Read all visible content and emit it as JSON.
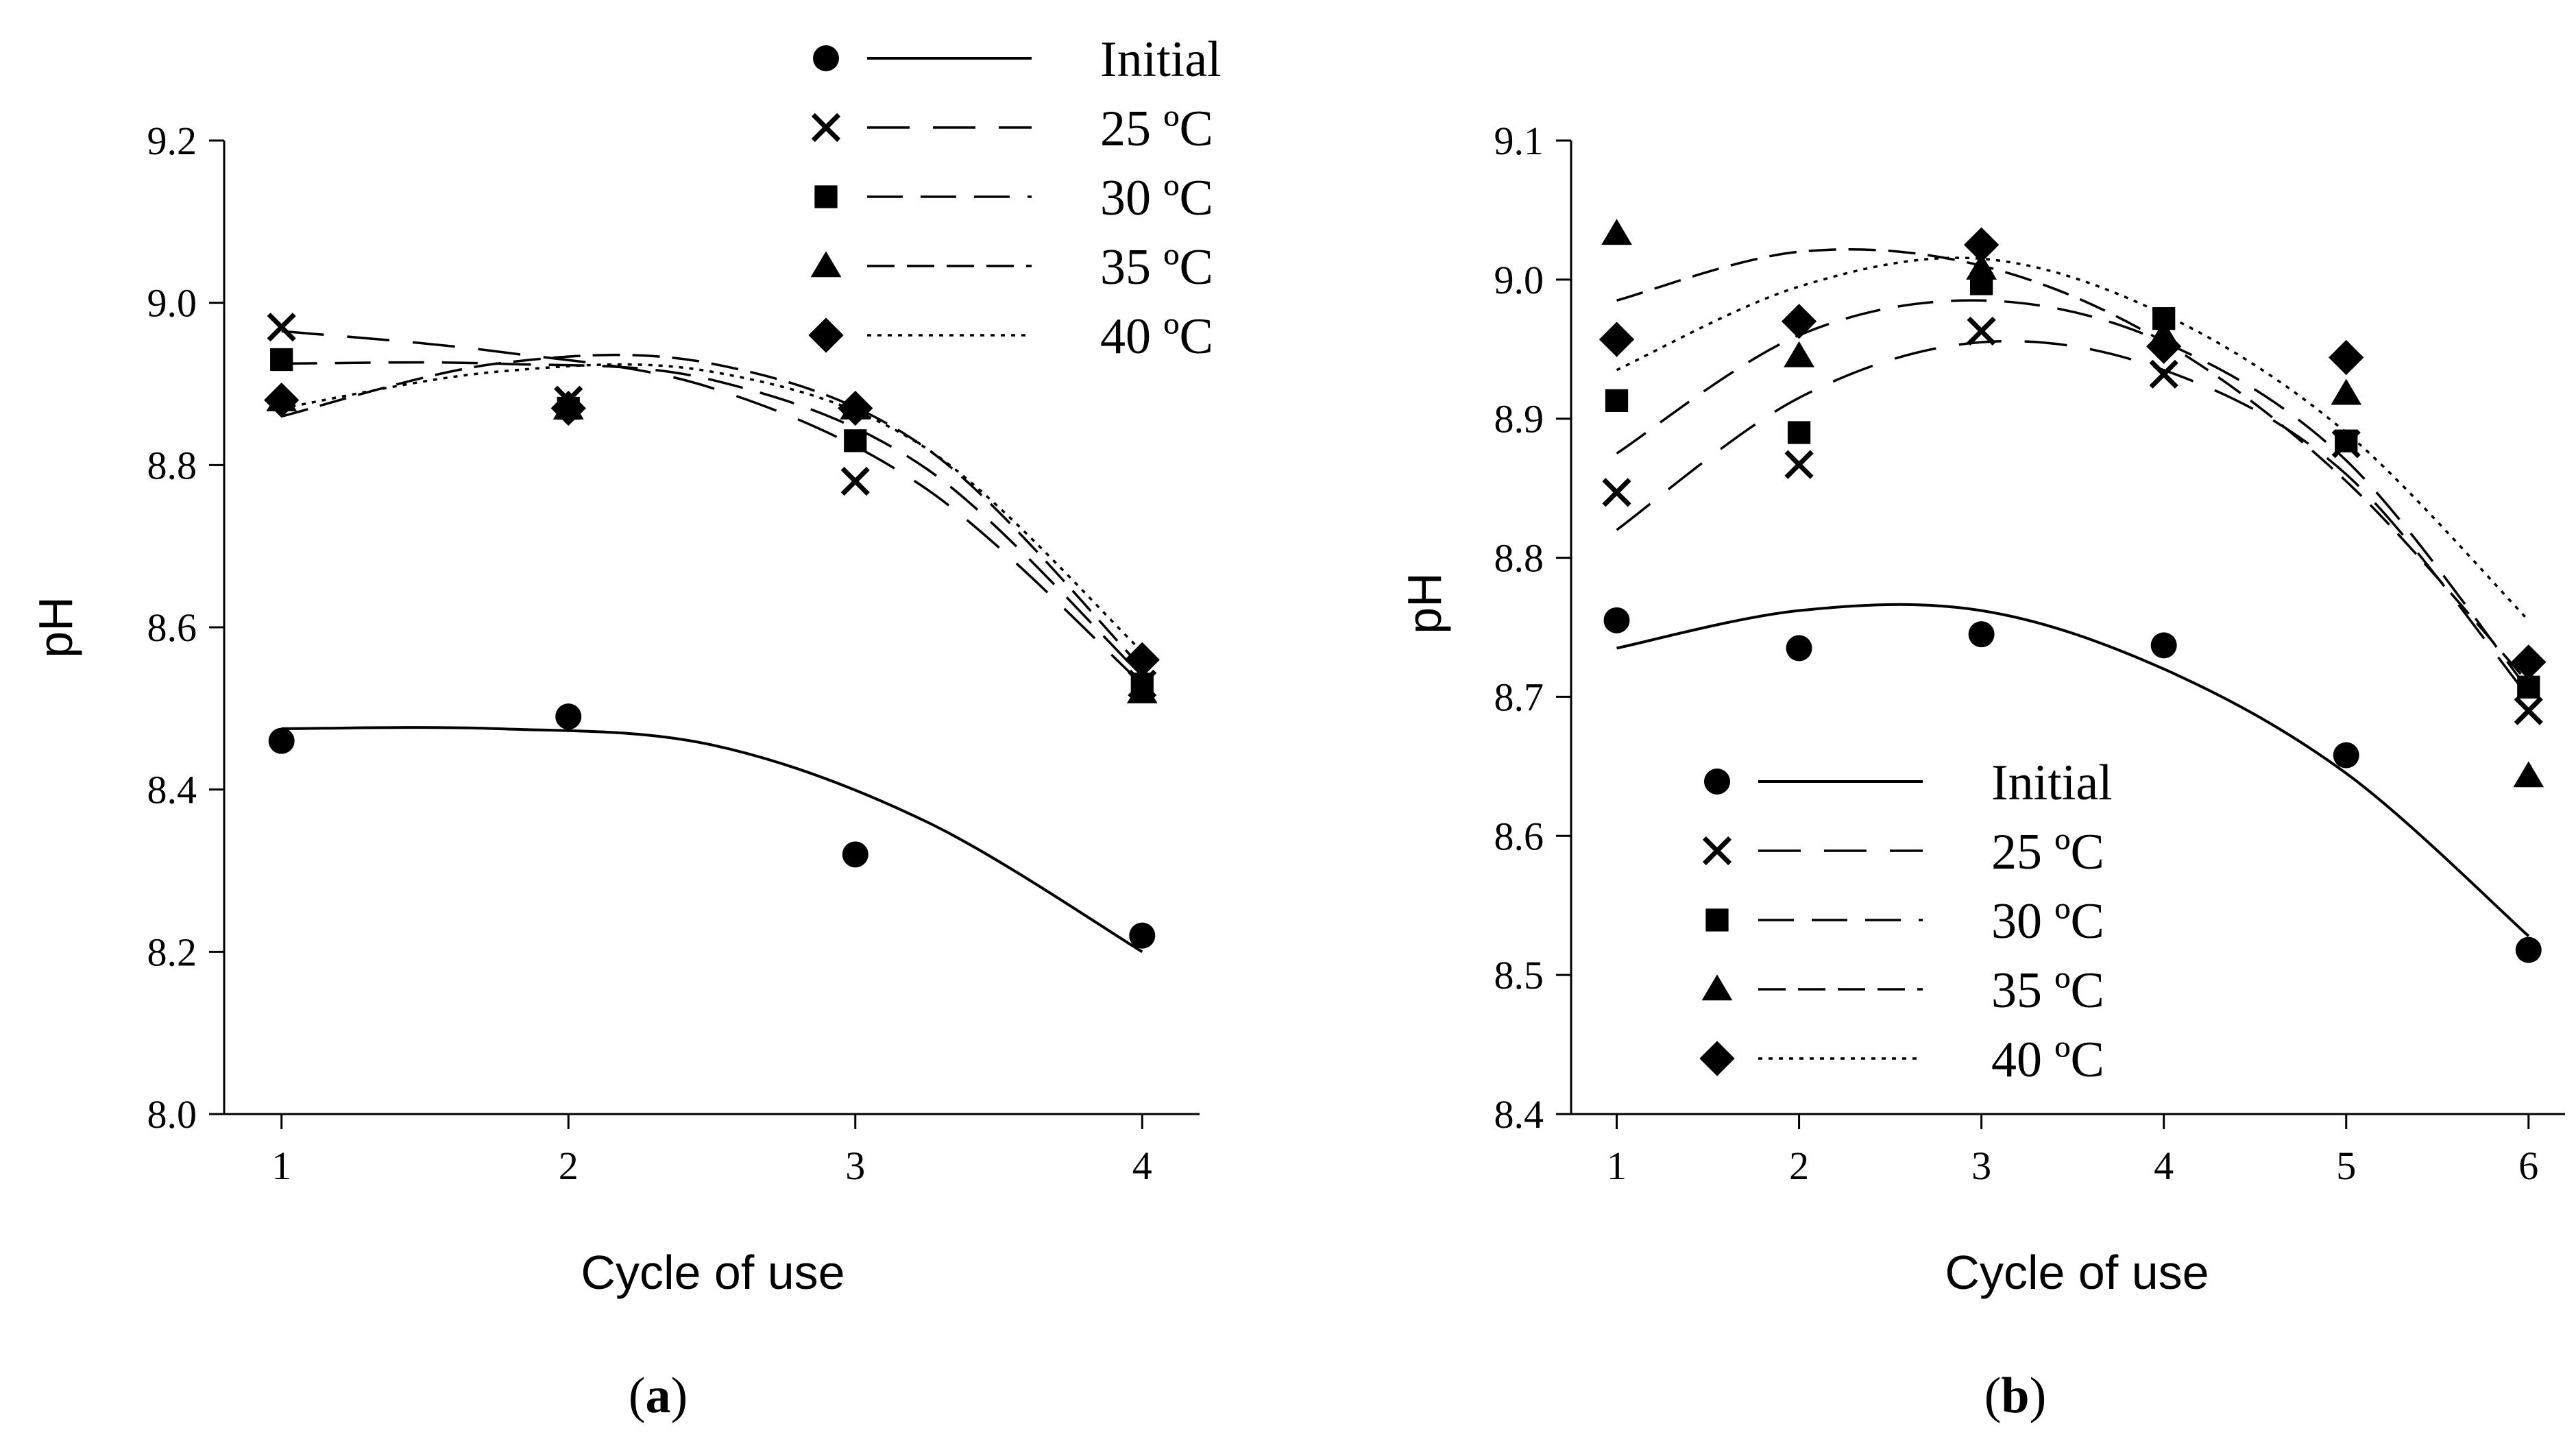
{
  "chart_data": [
    {
      "panel": "a",
      "type": "scatter",
      "panel_label_open": "(",
      "panel_label_letter": "a",
      "panel_label_close": ")",
      "xlabel": "Cycle of use",
      "ylabel": "pH",
      "xlim": [
        0.8,
        4.2
      ],
      "ylim": [
        8.0,
        9.2
      ],
      "xticks": [
        1,
        2,
        3,
        4
      ],
      "yticks": [
        8.0,
        8.2,
        8.4,
        8.6,
        8.8,
        9.0,
        9.2
      ],
      "ytick_labels": [
        "8.0",
        "8.2",
        "8.4",
        "8.6",
        "8.8",
        "9.0",
        "9.2"
      ],
      "legend_position": "top",
      "series": [
        {
          "name": "Initial",
          "marker": "circle",
          "line": "solid",
          "x": [
            1,
            2,
            3,
            4
          ],
          "values": [
            8.46,
            8.49,
            8.32,
            8.22
          ],
          "fit": [
            8.475,
            8.475,
            8.455,
            8.36,
            8.2
          ]
        },
        {
          "name": "25 ºC",
          "marker": "x",
          "line": "longdash",
          "x": [
            1,
            2,
            3,
            4
          ],
          "values": [
            8.97,
            8.88,
            8.78,
            8.53
          ],
          "fit": [
            8.965,
            8.94,
            8.895,
            8.77,
            8.53
          ]
        },
        {
          "name": "30 ºC",
          "marker": "square",
          "line": "longdash2",
          "x": [
            1,
            2,
            3,
            4
          ],
          "values": [
            8.93,
            8.87,
            8.83,
            8.53
          ],
          "fit": [
            8.925,
            8.925,
            8.905,
            8.795,
            8.54
          ]
        },
        {
          "name": "35 ºC",
          "marker": "triangle",
          "line": "dash",
          "x": [
            1,
            2,
            3,
            4
          ],
          "values": [
            8.88,
            8.87,
            8.87,
            8.52
          ],
          "fit": [
            8.86,
            8.925,
            8.925,
            8.82,
            8.55
          ]
        },
        {
          "name": "40 ºC",
          "marker": "diamond",
          "line": "dot",
          "x": [
            1,
            2,
            3,
            4
          ],
          "values": [
            8.88,
            8.87,
            8.87,
            8.56
          ],
          "fit": [
            8.87,
            8.915,
            8.915,
            8.82,
            8.57
          ]
        }
      ]
    },
    {
      "panel": "b",
      "type": "scatter",
      "panel_label_open": "(",
      "panel_label_letter": "b",
      "panel_label_close": ")",
      "xlabel": "Cycle of use",
      "ylabel": "pH",
      "xlim": [
        0.75,
        6.2
      ],
      "ylim": [
        8.4,
        9.1
      ],
      "xticks": [
        1,
        2,
        3,
        4,
        5,
        6
      ],
      "yticks": [
        8.4,
        8.5,
        8.6,
        8.7,
        8.8,
        8.9,
        9.0,
        9.1
      ],
      "ytick_labels": [
        "8.4",
        "8.5",
        "8.6",
        "8.7",
        "8.8",
        "8.9",
        "9.0",
        "9.1"
      ],
      "legend_position": "bottom-left",
      "series": [
        {
          "name": "Initial",
          "marker": "circle",
          "line": "solid",
          "x": [
            1,
            2,
            3,
            4,
            5,
            6
          ],
          "values": [
            8.755,
            8.735,
            8.745,
            8.737,
            8.658,
            8.518
          ],
          "fit": [
            8.735,
            8.762,
            8.762,
            8.72,
            8.645,
            8.528
          ]
        },
        {
          "name": "25 ºC",
          "marker": "x",
          "line": "longdash",
          "x": [
            1,
            2,
            3,
            4,
            5,
            6
          ],
          "values": [
            8.847,
            8.867,
            8.963,
            8.932,
            8.882,
            8.69
          ],
          "fit": [
            8.82,
            8.915,
            8.955,
            8.935,
            8.86,
            8.7
          ]
        },
        {
          "name": "30 ºC",
          "marker": "square",
          "line": "longdash2",
          "x": [
            1,
            2,
            3,
            4,
            5,
            6
          ],
          "values": [
            8.913,
            8.89,
            8.997,
            8.972,
            8.884,
            8.707
          ],
          "fit": [
            8.875,
            8.96,
            8.985,
            8.955,
            8.87,
            8.705
          ]
        },
        {
          "name": "35 ºC",
          "marker": "triangle",
          "line": "dash",
          "x": [
            1,
            2,
            3,
            4,
            5,
            6
          ],
          "values": [
            9.033,
            8.945,
            9.008,
            8.96,
            8.918,
            8.643
          ],
          "fit": [
            8.985,
            9.02,
            9.01,
            8.955,
            8.855,
            8.71
          ]
        },
        {
          "name": "40 ºC",
          "marker": "diamond",
          "line": "dot",
          "x": [
            1,
            2,
            3,
            4,
            5,
            6
          ],
          "values": [
            8.957,
            8.97,
            9.025,
            8.952,
            8.944,
            8.725
          ],
          "fit": [
            8.935,
            8.995,
            9.015,
            8.975,
            8.89,
            8.755
          ]
        }
      ]
    }
  ]
}
